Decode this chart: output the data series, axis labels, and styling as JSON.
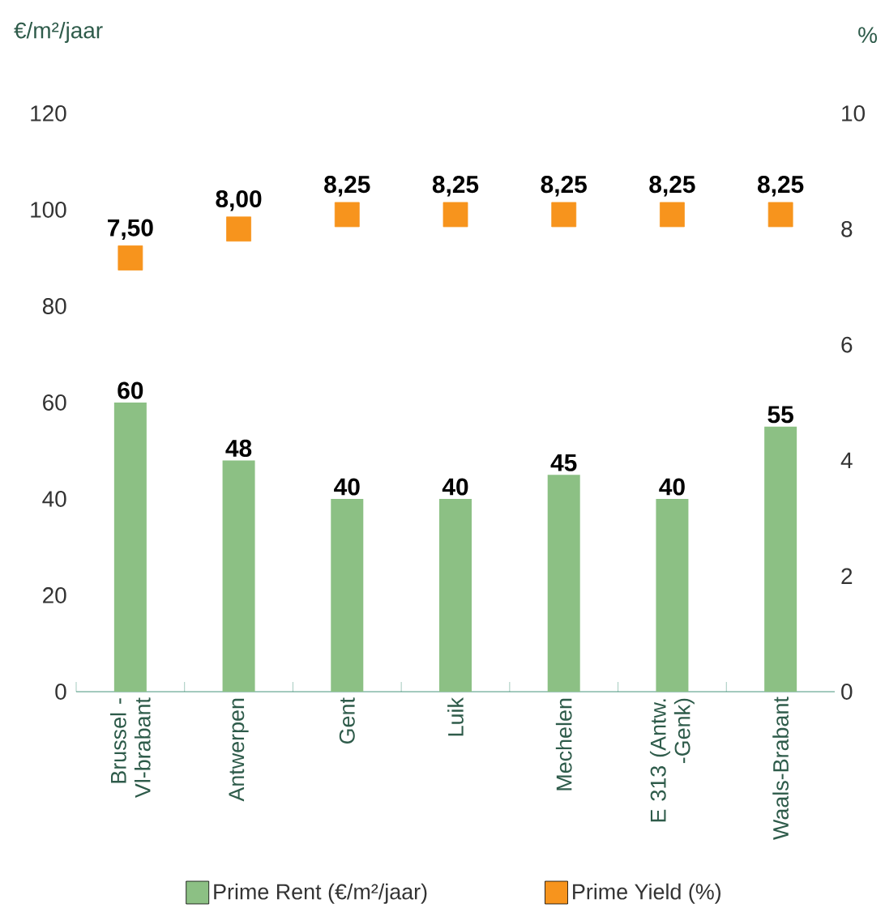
{
  "chart_data": {
    "type": "bar",
    "ylabel": "€/m²/jaar",
    "y2label": "%",
    "categories": [
      "Brussel - Vl-brabant",
      "Antwerpen",
      "Gent",
      "Luik",
      "Mechelen",
      "E 313 (Antw. -Genk)",
      "Waals-Brabant"
    ],
    "series": [
      {
        "name": "Prime Rent (€/m²/jaar)",
        "color": "#8cc084",
        "values": [
          60,
          48,
          40,
          40,
          45,
          40,
          55
        ]
      },
      {
        "name": "Prime Yield (%)",
        "type": "scatter",
        "axis": "y2",
        "marker": "square",
        "color": "#f7941d",
        "values": [
          7.5,
          8,
          8.25,
          8.25,
          8.25,
          8.25,
          8.25
        ],
        "value_labels": [
          "7,50",
          "8,00",
          "8,25",
          "8,25",
          "8,25",
          "8,25",
          "8,25"
        ]
      }
    ],
    "data_labels": true,
    "ylim": [
      0,
      120
    ],
    "yticks": [
      0,
      20,
      40,
      60,
      80,
      100,
      120
    ],
    "y2lim": [
      0,
      10
    ],
    "y2ticks": [
      0,
      2,
      4,
      6,
      8,
      10
    ],
    "legend": "bottom",
    "grid": false
  }
}
